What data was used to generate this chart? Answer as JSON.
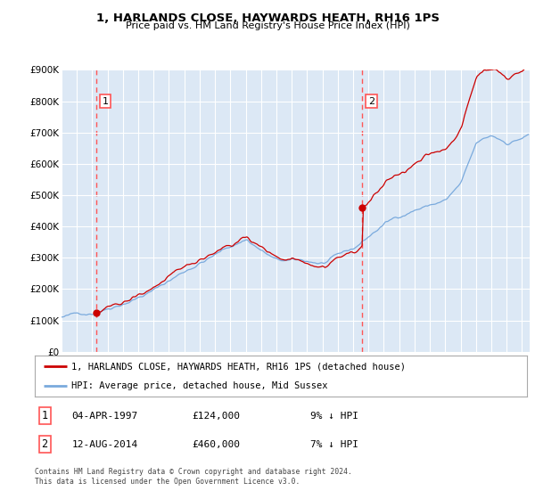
{
  "title1": "1, HARLANDS CLOSE, HAYWARDS HEATH, RH16 1PS",
  "title2": "Price paid vs. HM Land Registry's House Price Index (HPI)",
  "legend_property": "1, HARLANDS CLOSE, HAYWARDS HEATH, RH16 1PS (detached house)",
  "legend_hpi": "HPI: Average price, detached house, Mid Sussex",
  "footnote": "Contains HM Land Registry data © Crown copyright and database right 2024.\nThis data is licensed under the Open Government Licence v3.0.",
  "sale1_date": "04-APR-1997",
  "sale1_price": 124000,
  "sale1_label": "9% ↓ HPI",
  "sale2_date": "12-AUG-2014",
  "sale2_price": 460000,
  "sale2_label": "7% ↓ HPI",
  "sale1_x": 1997.25,
  "sale2_x": 2014.58,
  "ylabel_ticks": [
    "£0",
    "£100K",
    "£200K",
    "£300K",
    "£400K",
    "£500K",
    "£600K",
    "£700K",
    "£800K",
    "£900K"
  ],
  "ylabel_values": [
    0,
    100000,
    200000,
    300000,
    400000,
    500000,
    600000,
    700000,
    800000,
    900000
  ],
  "xmin": 1995.0,
  "xmax": 2025.5,
  "ymin": 0,
  "ymax": 900000,
  "property_color": "#cc0000",
  "hpi_color": "#7aaadd",
  "vline_color": "#ff5555",
  "plot_bg_color": "#dce8f5",
  "grid_color": "#ffffff",
  "fig_bg_color": "#ffffff"
}
